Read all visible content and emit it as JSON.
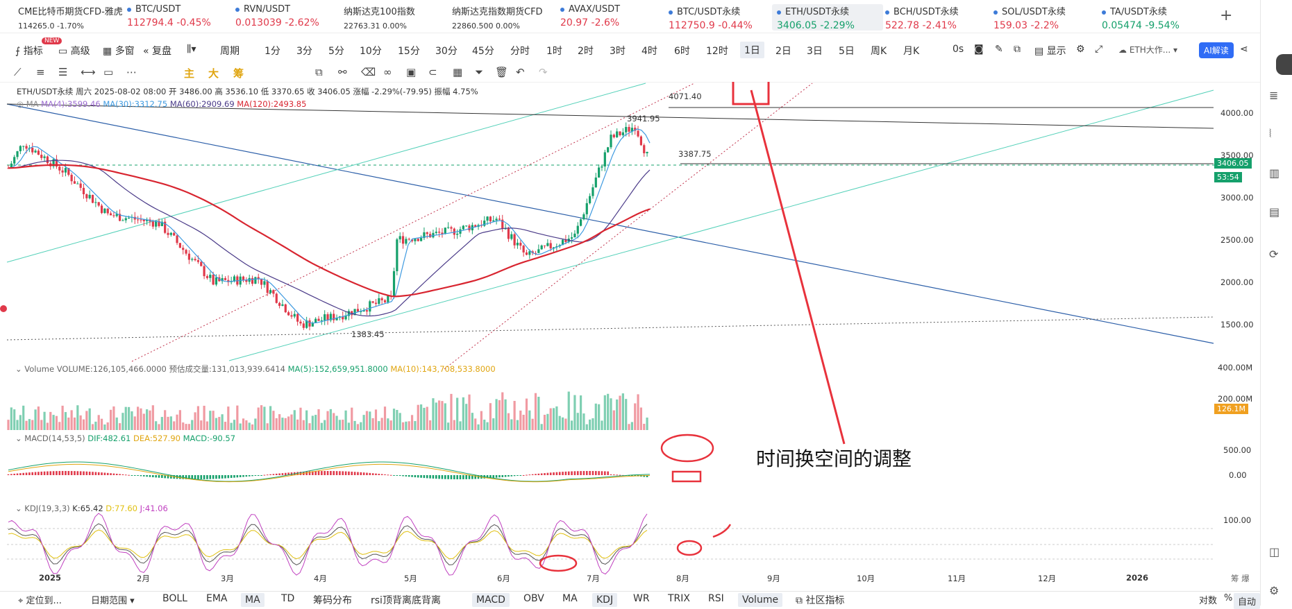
{
  "tickers": [
    {
      "name": "CME比特币期货CFD-雅虎",
      "vals": [
        "114265.0",
        "-1.70%"
      ],
      "small": true,
      "dot": false,
      "color": "red"
    },
    {
      "name": "BTC/USDT",
      "vals": [
        "112794.4",
        "-0.45%"
      ],
      "dot": true,
      "color": "red"
    },
    {
      "name": "RVN/USDT",
      "vals": [
        "0.013039",
        "-2.62%"
      ],
      "dot": true,
      "color": "red"
    },
    {
      "name": "纳斯达克100指数",
      "vals": [
        "22763.31",
        "0.00%"
      ],
      "small": true,
      "dot": false,
      "color": "dark"
    },
    {
      "name": "纳斯达克指数期货CFD",
      "vals": [
        "22860.500",
        "0.00%"
      ],
      "small": true,
      "dot": false,
      "color": "dark"
    },
    {
      "name": "AVAX/USDT",
      "vals": [
        "20.97",
        "-2.6%"
      ],
      "dot": true,
      "color": "red"
    },
    {
      "name": "BTC/USDT永续",
      "vals": [
        "112750.9",
        "-0.44%"
      ],
      "dot": true,
      "color": "red"
    },
    {
      "name": "ETH/USDT永续",
      "vals": [
        "3406.05",
        "-2.29%"
      ],
      "dot": true,
      "color": "green",
      "active": true
    },
    {
      "name": "BCH/USDT永续",
      "vals": [
        "522.78",
        "-2.41%"
      ],
      "dot": true,
      "color": "red"
    },
    {
      "name": "SOL/USDT永续",
      "vals": [
        "159.03",
        "-2.2%"
      ],
      "dot": true,
      "color": "red"
    },
    {
      "name": "TA/USDT永续",
      "vals": [
        "0.05474",
        "-9.54%"
      ],
      "dot": true,
      "color": "green"
    }
  ],
  "toolbar": {
    "indicators": "指标",
    "new_badge": "NEW",
    "advanced": "高级",
    "multi": "多窗",
    "replay": "复盘",
    "period": "周期",
    "periods": [
      "1分",
      "3分",
      "5分",
      "10分",
      "15分",
      "30分",
      "45分",
      "分时",
      "1时",
      "2时",
      "3时",
      "4时",
      "6时",
      "12时",
      "1日",
      "2日",
      "3日",
      "5日",
      "周K",
      "月K"
    ],
    "selected_period": "1日",
    "seconds": "0s",
    "display": "显示",
    "symbol_select": "ETH大作...",
    "ai": "AI解读"
  },
  "drawbar": {
    "main": "主",
    "big": "大",
    "chips": "筹"
  },
  "legend": {
    "title": "ETH/USDT永续  周六 2025-08-02 08:00  开 3486.00  高 3536.10  低 3370.65  收 3406.05  涨幅 -2.29%(-79.95)  振幅 4.75%",
    "ma_label": "MA",
    "ma4": "MA(4):3599.46",
    "ma30": "MA(30):3312.75",
    "ma60": "MA(60):2909.69",
    "ma120": "MA(120):2493.85",
    "vol_label": "Volume  VOLUME:126,105,466.0000",
    "vol_est": "预估成交量:131,013,939.6414",
    "vol_ma5": "MA(5):152,659,951.8000",
    "vol_ma10": "MA(10):143,708,533.8000",
    "macd_label": "MACD(14,53,5)",
    "dif": "DIF:482.61",
    "dea": "DEA:527.90",
    "macd": "MACD:-90.57",
    "kdj_label": "KDJ(19,3,3)",
    "k": "K:65.42",
    "d": "D:77.60",
    "j": "J:41.06"
  },
  "price_axis": [
    "4000.00",
    "3500.00",
    "3000.00",
    "2500.00",
    "2000.00",
    "1500.00"
  ],
  "vol_axis": [
    "400.00M",
    "200.00M"
  ],
  "macd_axis": [
    "500.00",
    "0.00"
  ],
  "kdj_axis": [
    "100.00"
  ],
  "price_tag": "3406.05",
  "time_tag": "53:54",
  "vol_tag": "126.1M",
  "marks": {
    "high": "4071.40",
    "peak": "3941.95",
    "low": "1383.45",
    "recent_low": "3387.75"
  },
  "months": [
    "2025",
    "2月",
    "3月",
    "4月",
    "5月",
    "6月",
    "7月",
    "8月",
    "9月",
    "10月",
    "11月",
    "12月",
    "2026"
  ],
  "axis_corner": "筹 爆",
  "annotation": "时间换空间的调整",
  "bottombar": {
    "locate": "定位到...",
    "date_range": "日期范围",
    "items": [
      "BOLL",
      "EMA",
      "MA",
      "TD",
      "筹码分布",
      "rsi顶背离底背离"
    ],
    "items2": [
      "MACD",
      "OBV",
      "MA",
      "KDJ",
      "WR",
      "TRIX",
      "RSI",
      "Volume"
    ],
    "community": "社区指标",
    "log": "对数",
    "pct": "%",
    "auto": "自动"
  },
  "colors": {
    "up": "#15a06b",
    "down": "#e0394a",
    "ma4": "#9b6ad0",
    "ma30": "#3e9ae0",
    "ma60": "#4a3a88",
    "ma120": "#d82530",
    "annot": "#e8323c"
  },
  "chart_data": {
    "type": "candlestick",
    "price_points": [
      [
        "2025-01-01",
        3350
      ],
      [
        "2025-01-06",
        3650
      ],
      [
        "2025-01-20",
        3300
      ],
      [
        "2025-02-03",
        2800
      ],
      [
        "2025-02-20",
        2700
      ],
      [
        "2025-03-10",
        2000
      ],
      [
        "2025-03-25",
        2050
      ],
      [
        "2025-04-08",
        1500
      ],
      [
        "2025-04-20",
        1600
      ],
      [
        "2025-05-08",
        1800
      ],
      [
        "2025-05-10",
        2500
      ],
      [
        "2025-05-28",
        2600
      ],
      [
        "2025-06-12",
        2750
      ],
      [
        "2025-06-22",
        2300
      ],
      [
        "2025-07-08",
        2550
      ],
      [
        "2025-07-20",
        3700
      ],
      [
        "2025-07-28",
        3850
      ],
      [
        "2025-08-02",
        3406.05
      ]
    ],
    "ylim": [
      1200,
      4300
    ]
  }
}
